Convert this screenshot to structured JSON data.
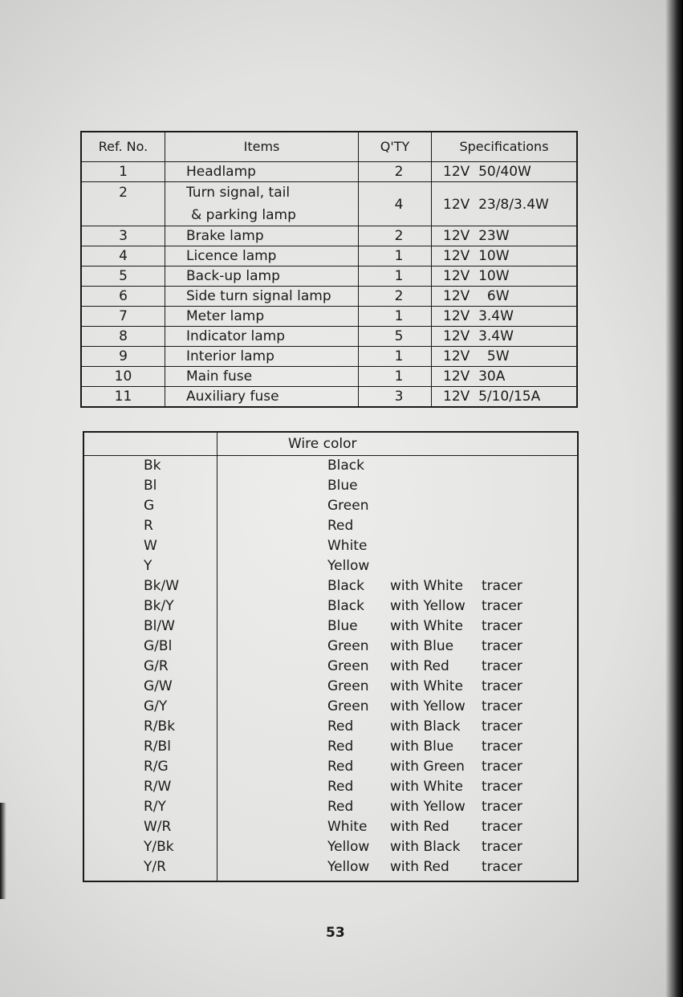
{
  "spec_table": {
    "headers": [
      "Ref. No.",
      "Items",
      "Q'TY",
      "Specifications"
    ],
    "rows": [
      {
        "ref": "1",
        "item": "Headlamp",
        "qty": "2",
        "spec": "12V  50/40W"
      },
      {
        "ref": "2",
        "item": "Turn signal, tail",
        "item2": "& parking lamp",
        "qty": "4",
        "spec": "12V  23/8/3.4W"
      },
      {
        "ref": "3",
        "item": "Brake lamp",
        "qty": "2",
        "spec": "12V  23W"
      },
      {
        "ref": "4",
        "item": "Licence lamp",
        "qty": "1",
        "spec": "12V  10W"
      },
      {
        "ref": "5",
        "item": "Back-up lamp",
        "qty": "1",
        "spec": "12V  10W"
      },
      {
        "ref": "6",
        "item": "Side turn signal lamp",
        "qty": "2",
        "spec": "12V    6W"
      },
      {
        "ref": "7",
        "item": "Meter lamp",
        "qty": "1",
        "spec": "12V  3.4W"
      },
      {
        "ref": "8",
        "item": "Indicator lamp",
        "qty": "5",
        "spec": "12V  3.4W"
      },
      {
        "ref": "9",
        "item": "Interior lamp",
        "qty": "1",
        "spec": "12V    5W"
      },
      {
        "ref": "10",
        "item": "Main fuse",
        "qty": "1",
        "spec": "12V  30A"
      },
      {
        "ref": "11",
        "item": "Auxiliary  fuse",
        "qty": "3",
        "spec": "12V  5/10/15A"
      }
    ]
  },
  "wire_table": {
    "header": "Wire  color",
    "rows": [
      {
        "code": "Bk",
        "color": "Black",
        "with": "",
        "tracer": ""
      },
      {
        "code": "Bl",
        "color": "Blue",
        "with": "",
        "tracer": ""
      },
      {
        "code": "G",
        "color": "Green",
        "with": "",
        "tracer": ""
      },
      {
        "code": "R",
        "color": "Red",
        "with": "",
        "tracer": ""
      },
      {
        "code": "W",
        "color": "White",
        "with": "",
        "tracer": ""
      },
      {
        "code": "Y",
        "color": "Yellow",
        "with": "",
        "tracer": ""
      },
      {
        "code": "Bk/W",
        "color": "Black",
        "with": "with White",
        "tracer": "tracer"
      },
      {
        "code": "Bk/Y",
        "color": "Black",
        "with": "with Yellow",
        "tracer": "tracer"
      },
      {
        "code": "Bl/W",
        "color": "Blue",
        "with": "with White",
        "tracer": "tracer"
      },
      {
        "code": "G/Bl",
        "color": "Green",
        "with": "with Blue",
        "tracer": "tracer"
      },
      {
        "code": "G/R",
        "color": "Green",
        "with": "with Red",
        "tracer": "tracer"
      },
      {
        "code": "G/W",
        "color": "Green",
        "with": "with White",
        "tracer": "tracer"
      },
      {
        "code": "G/Y",
        "color": "Green",
        "with": "with Yellow",
        "tracer": "tracer"
      },
      {
        "code": "R/Bk",
        "color": "Red",
        "with": "with Black",
        "tracer": "tracer"
      },
      {
        "code": "R/Bl",
        "color": "Red",
        "with": "with Blue",
        "tracer": "tracer"
      },
      {
        "code": "R/G",
        "color": "Red",
        "with": "with Green",
        "tracer": "tracer"
      },
      {
        "code": "R/W",
        "color": "Red",
        "with": "with White",
        "tracer": "tracer"
      },
      {
        "code": "R/Y",
        "color": "Red",
        "with": "with Yellow",
        "tracer": "tracer"
      },
      {
        "code": "W/R",
        "color": "White",
        "with": "with Red",
        "tracer": "tracer"
      },
      {
        "code": "Y/Bk",
        "color": "Yellow",
        "with": "with Black",
        "tracer": "tracer"
      },
      {
        "code": "Y/R",
        "color": "Yellow",
        "with": "with Red",
        "tracer": "tracer"
      }
    ]
  },
  "page_number": "53"
}
